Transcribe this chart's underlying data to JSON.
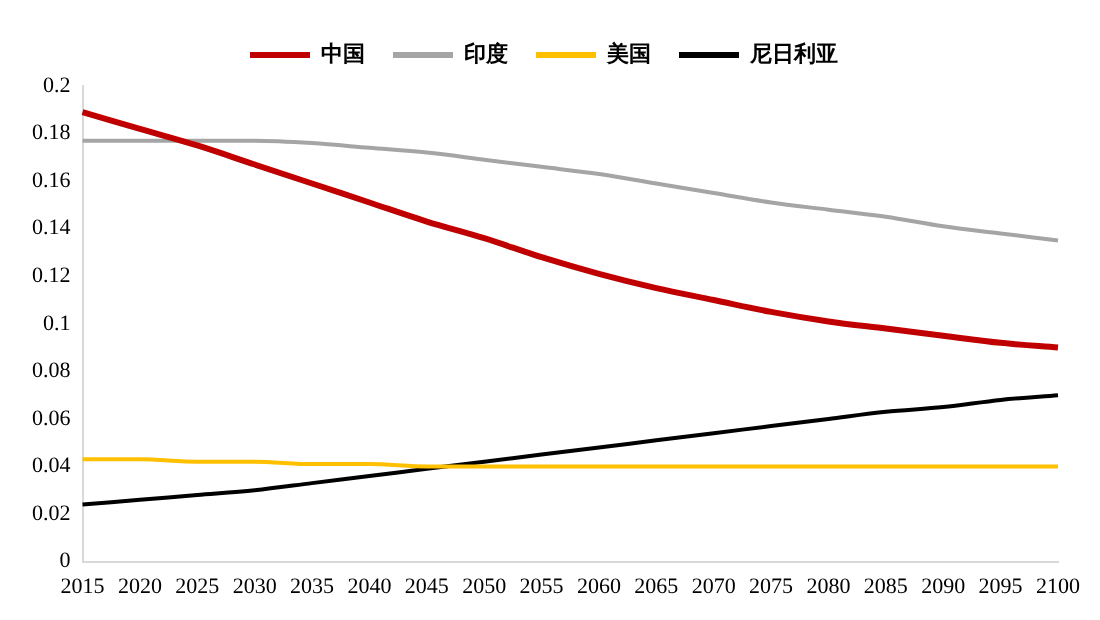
{
  "chart_data": {
    "type": "line",
    "categories": [
      "2015",
      "2020",
      "2025",
      "2030",
      "2035",
      "2040",
      "2045",
      "2050",
      "2055",
      "2060",
      "2065",
      "2070",
      "2075",
      "2080",
      "2085",
      "2090",
      "2095",
      "2100"
    ],
    "series": [
      {
        "name": "中国",
        "color": "#c00000",
        "values": [
          0.189,
          0.182,
          0.175,
          0.167,
          0.159,
          0.151,
          0.143,
          0.136,
          0.128,
          0.121,
          0.115,
          0.11,
          0.105,
          0.101,
          0.098,
          0.095,
          0.092,
          0.09
        ]
      },
      {
        "name": "印度",
        "color": "#a5a5a5",
        "values": [
          0.177,
          0.177,
          0.177,
          0.177,
          0.176,
          0.174,
          0.172,
          0.169,
          0.166,
          0.163,
          0.159,
          0.155,
          0.151,
          0.148,
          0.145,
          0.141,
          0.138,
          0.135
        ]
      },
      {
        "name": "美国",
        "color": "#ffc000",
        "values": [
          0.043,
          0.043,
          0.042,
          0.042,
          0.041,
          0.041,
          0.04,
          0.04,
          0.04,
          0.04,
          0.04,
          0.04,
          0.04,
          0.04,
          0.04,
          0.04,
          0.04,
          0.04
        ]
      },
      {
        "name": "尼日利亚",
        "color": "#000000",
        "values": [
          0.024,
          0.026,
          0.028,
          0.03,
          0.033,
          0.036,
          0.039,
          0.042,
          0.045,
          0.048,
          0.051,
          0.054,
          0.057,
          0.06,
          0.063,
          0.065,
          0.068,
          0.07
        ]
      }
    ],
    "ylim": [
      0,
      0.2
    ],
    "yticks": [
      0,
      0.02,
      0.04,
      0.06,
      0.08,
      0.1,
      0.12,
      0.14,
      0.16,
      0.18,
      0.2
    ],
    "grid": false,
    "legend": "top",
    "marker": "none",
    "line_style": "solid"
  }
}
